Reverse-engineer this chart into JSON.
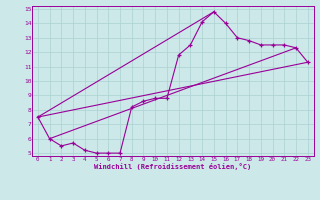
{
  "xlabel": "Windchill (Refroidissement éolien,°C)",
  "xlim": [
    -0.5,
    23.5
  ],
  "ylim": [
    4.8,
    15.2
  ],
  "xticks": [
    0,
    1,
    2,
    3,
    4,
    5,
    6,
    7,
    8,
    9,
    10,
    11,
    12,
    13,
    14,
    15,
    16,
    17,
    18,
    19,
    20,
    21,
    22,
    23
  ],
  "yticks": [
    5,
    6,
    7,
    8,
    9,
    10,
    11,
    12,
    13,
    14,
    15
  ],
  "background_color": "#cce8e8",
  "line_color": "#990099",
  "grid_color": "#b0d4d4",
  "series1_x": [
    0,
    1,
    2,
    3,
    4,
    5,
    6,
    7,
    8,
    9,
    10,
    11,
    12,
    13,
    14,
    15,
    16,
    17,
    18,
    19,
    20,
    21,
    22,
    23
  ],
  "series1_y": [
    7.5,
    6.0,
    5.5,
    5.7,
    5.2,
    5.0,
    5.0,
    5.0,
    8.2,
    8.6,
    8.8,
    8.8,
    11.8,
    12.5,
    14.1,
    14.8,
    14.0,
    13.0,
    12.8,
    12.5,
    12.5,
    12.5,
    12.3,
    11.3
  ],
  "series2_x": [
    0,
    23
  ],
  "series2_y": [
    7.5,
    11.3
  ],
  "series3_x": [
    1,
    22
  ],
  "series3_y": [
    6.0,
    12.3
  ],
  "series4_x": [
    0,
    15
  ],
  "series4_y": [
    7.5,
    14.8
  ]
}
